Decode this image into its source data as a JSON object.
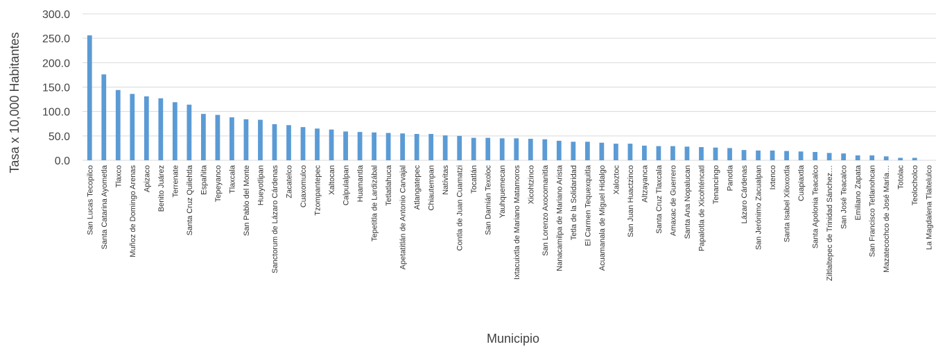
{
  "chart_data": {
    "type": "bar",
    "title": "",
    "xlabel": "Municipio",
    "ylabel": "Tasa x 10,000 Habitantes",
    "ylim": [
      0,
      300
    ],
    "yticks": [
      "0.0",
      "50.0",
      "100.0",
      "150.0",
      "200.0",
      "250.0",
      "300.0"
    ],
    "ytick_values": [
      0,
      50,
      100,
      150,
      200,
      250,
      300
    ],
    "grid": true,
    "legend": "none",
    "colors": {
      "bar": "#5b9bd5",
      "grid": "#d9d9d9"
    },
    "categories": [
      "San Lucas Tecopilco",
      "Santa Catarina Ayometla",
      "Tlaxco",
      "Muñoz de Domingo Arenas",
      "Apizaco",
      "Benito Juárez",
      "Terrenate",
      "Santa Cruz Quilehtla",
      "Españita",
      "Tepeyanco",
      "Tlaxcala",
      "San Pablo del Monte",
      "Hueyotlipan",
      "Sanctorum de Lázaro Cárdenas",
      "Zacatelco",
      "Cuaxomulco",
      "Tzompantepec",
      "Xaltocan",
      "Calpulalpan",
      "Huamantla",
      "Tepetitla de Lardizábal",
      "Tetlatlahuca",
      "Apetatitlán de Antonio Carvajal",
      "Atlangatepec",
      "Chiautempan",
      "Natívitas",
      "Contla de Juan Cuamatzi",
      "Tocatlán",
      "San Damián Texoloc",
      "Yauhquemecan",
      "Ixtacuixtla de Mariano Matamoros",
      "Xicohtzinco",
      "San Lorenzo Axocomanitla",
      "Nanacamilpa de Mariano Arista",
      "Tetla de la Solidaridad",
      "El Carmen Tequexquitla",
      "Acuamanala de Miguel Hidalgo",
      "Xaloztoc",
      "San Juan Huactzinco",
      "Altzayanca",
      "Santa Cruz Tlaxcala",
      "Amaxac de Guerrero",
      "Santa Ana Nopalucan",
      "Papalotla de Xicohténcatl",
      "Tenancingo",
      "Panotla",
      "Lázaro Cárdenas",
      "San Jerónimo Zacualpan",
      "Ixtenco",
      "Santa Isabel Xiloxoxtla",
      "Cuapiaxtla",
      "Santa Apolonia Teacalco",
      "Ziltlaltepec de Trinidad Sánchez…",
      "San José Teacalco",
      "Emiliano Zapata",
      "San Francisco Tetlanohcan",
      "Mazatecochco de José María…",
      "Totolac",
      "Teolocholco",
      "La Magdalena Tlaltelulco"
    ],
    "values": [
      256,
      176,
      144,
      136,
      131,
      127,
      119,
      114,
      95,
      93,
      88,
      84,
      83,
      74,
      72,
      68,
      65,
      63,
      59,
      58,
      57,
      56,
      55,
      54,
      54,
      51,
      50,
      46,
      46,
      45,
      45,
      44,
      43,
      40,
      38,
      38,
      36,
      34,
      34,
      30,
      29,
      29,
      28,
      27,
      26,
      25,
      21,
      20,
      20,
      19,
      18,
      17,
      15,
      14,
      10,
      10,
      8,
      5,
      5,
      0
    ]
  }
}
